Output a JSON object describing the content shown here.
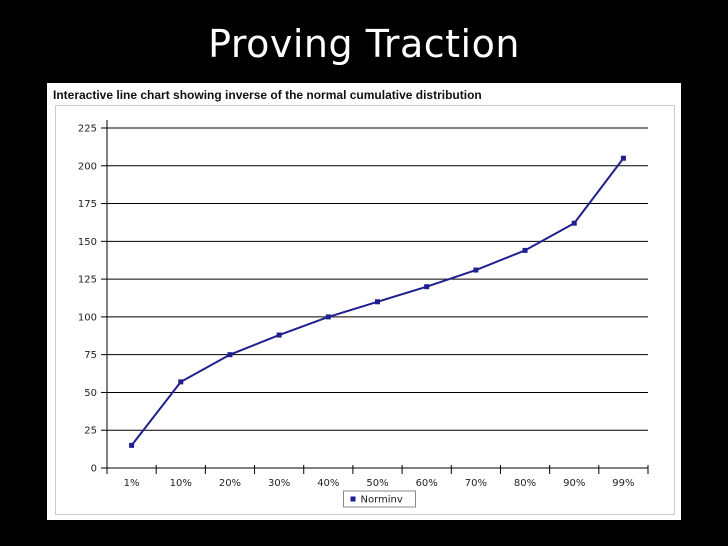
{
  "slide": {
    "title": "Proving Traction"
  },
  "chart_data": {
    "type": "line",
    "title": "Interactive line chart showing  inverse of the normal cumulative distribution",
    "xlabel": "",
    "ylabel": "",
    "categories": [
      "1%",
      "10%",
      "20%",
      "30%",
      "40%",
      "50%",
      "60%",
      "70%",
      "80%",
      "90%",
      "99%"
    ],
    "series": [
      {
        "name": "Norminv",
        "values": [
          15,
          57,
          75,
          88,
          100,
          110,
          120,
          131,
          144,
          162,
          205
        ]
      }
    ],
    "ylim": [
      0,
      225
    ],
    "yticks": [
      "0",
      "25",
      "50",
      "75",
      "100",
      "125",
      "150",
      "175",
      "200",
      "225"
    ],
    "grid": true,
    "legend_position": "bottom-center",
    "colors": {
      "line": "#1f1f8f",
      "grid": "#000000"
    }
  }
}
